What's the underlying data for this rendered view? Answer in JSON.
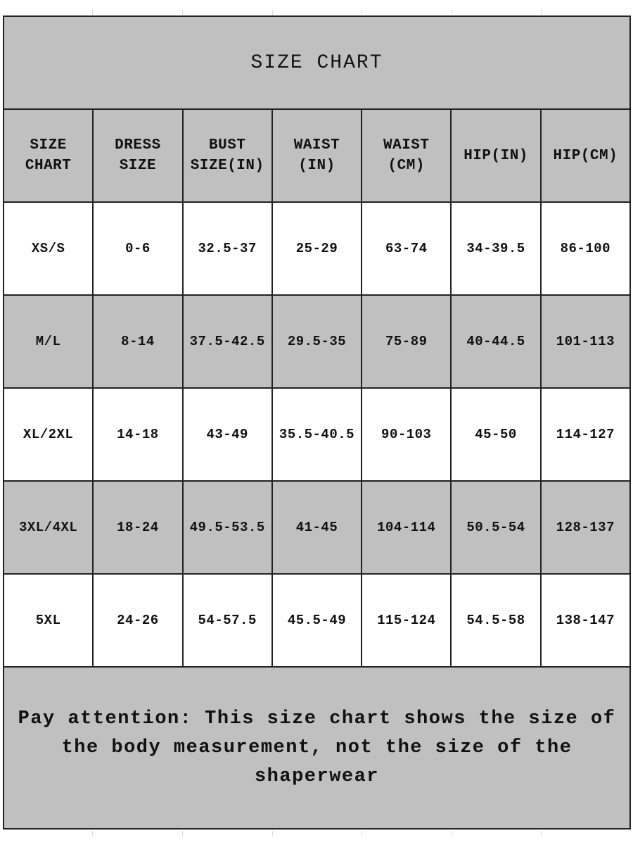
{
  "title": "SIZE CHART",
  "headers": [
    [
      "SIZE",
      "CHART"
    ],
    [
      "DRESS",
      "SIZE"
    ],
    [
      "BUST",
      "SIZE(IN)"
    ],
    [
      "WAIST",
      "(IN)"
    ],
    [
      "WAIST",
      "(CM)"
    ],
    [
      "HIP(IN)",
      ""
    ],
    [
      "HIP(CM)",
      ""
    ]
  ],
  "rows": [
    [
      "XS/S",
      "0-6",
      "32.5-37",
      "25-29",
      "63-74",
      "34-39.5",
      "86-100"
    ],
    [
      "M/L",
      "8-14",
      "37.5-42.5",
      "29.5-35",
      "75-89",
      "40-44.5",
      "101-113"
    ],
    [
      "XL/2XL",
      "14-18",
      "43-49",
      "35.5-40.5",
      "90-103",
      "45-50",
      "114-127"
    ],
    [
      "3XL/4XL",
      "18-24",
      "49.5-53.5",
      "41-45",
      "104-114",
      "50.5-54",
      "128-137"
    ],
    [
      "5XL",
      "24-26",
      "54-57.5",
      "45.5-49",
      "115-124",
      "54.5-58",
      "138-147"
    ]
  ],
  "note": "Pay attention: This size chart shows the size of the body measurement, not the size of the shaperwear",
  "colors": {
    "shaded": "#c0c0c0",
    "plain": "#ffffff",
    "border": "#222222"
  }
}
